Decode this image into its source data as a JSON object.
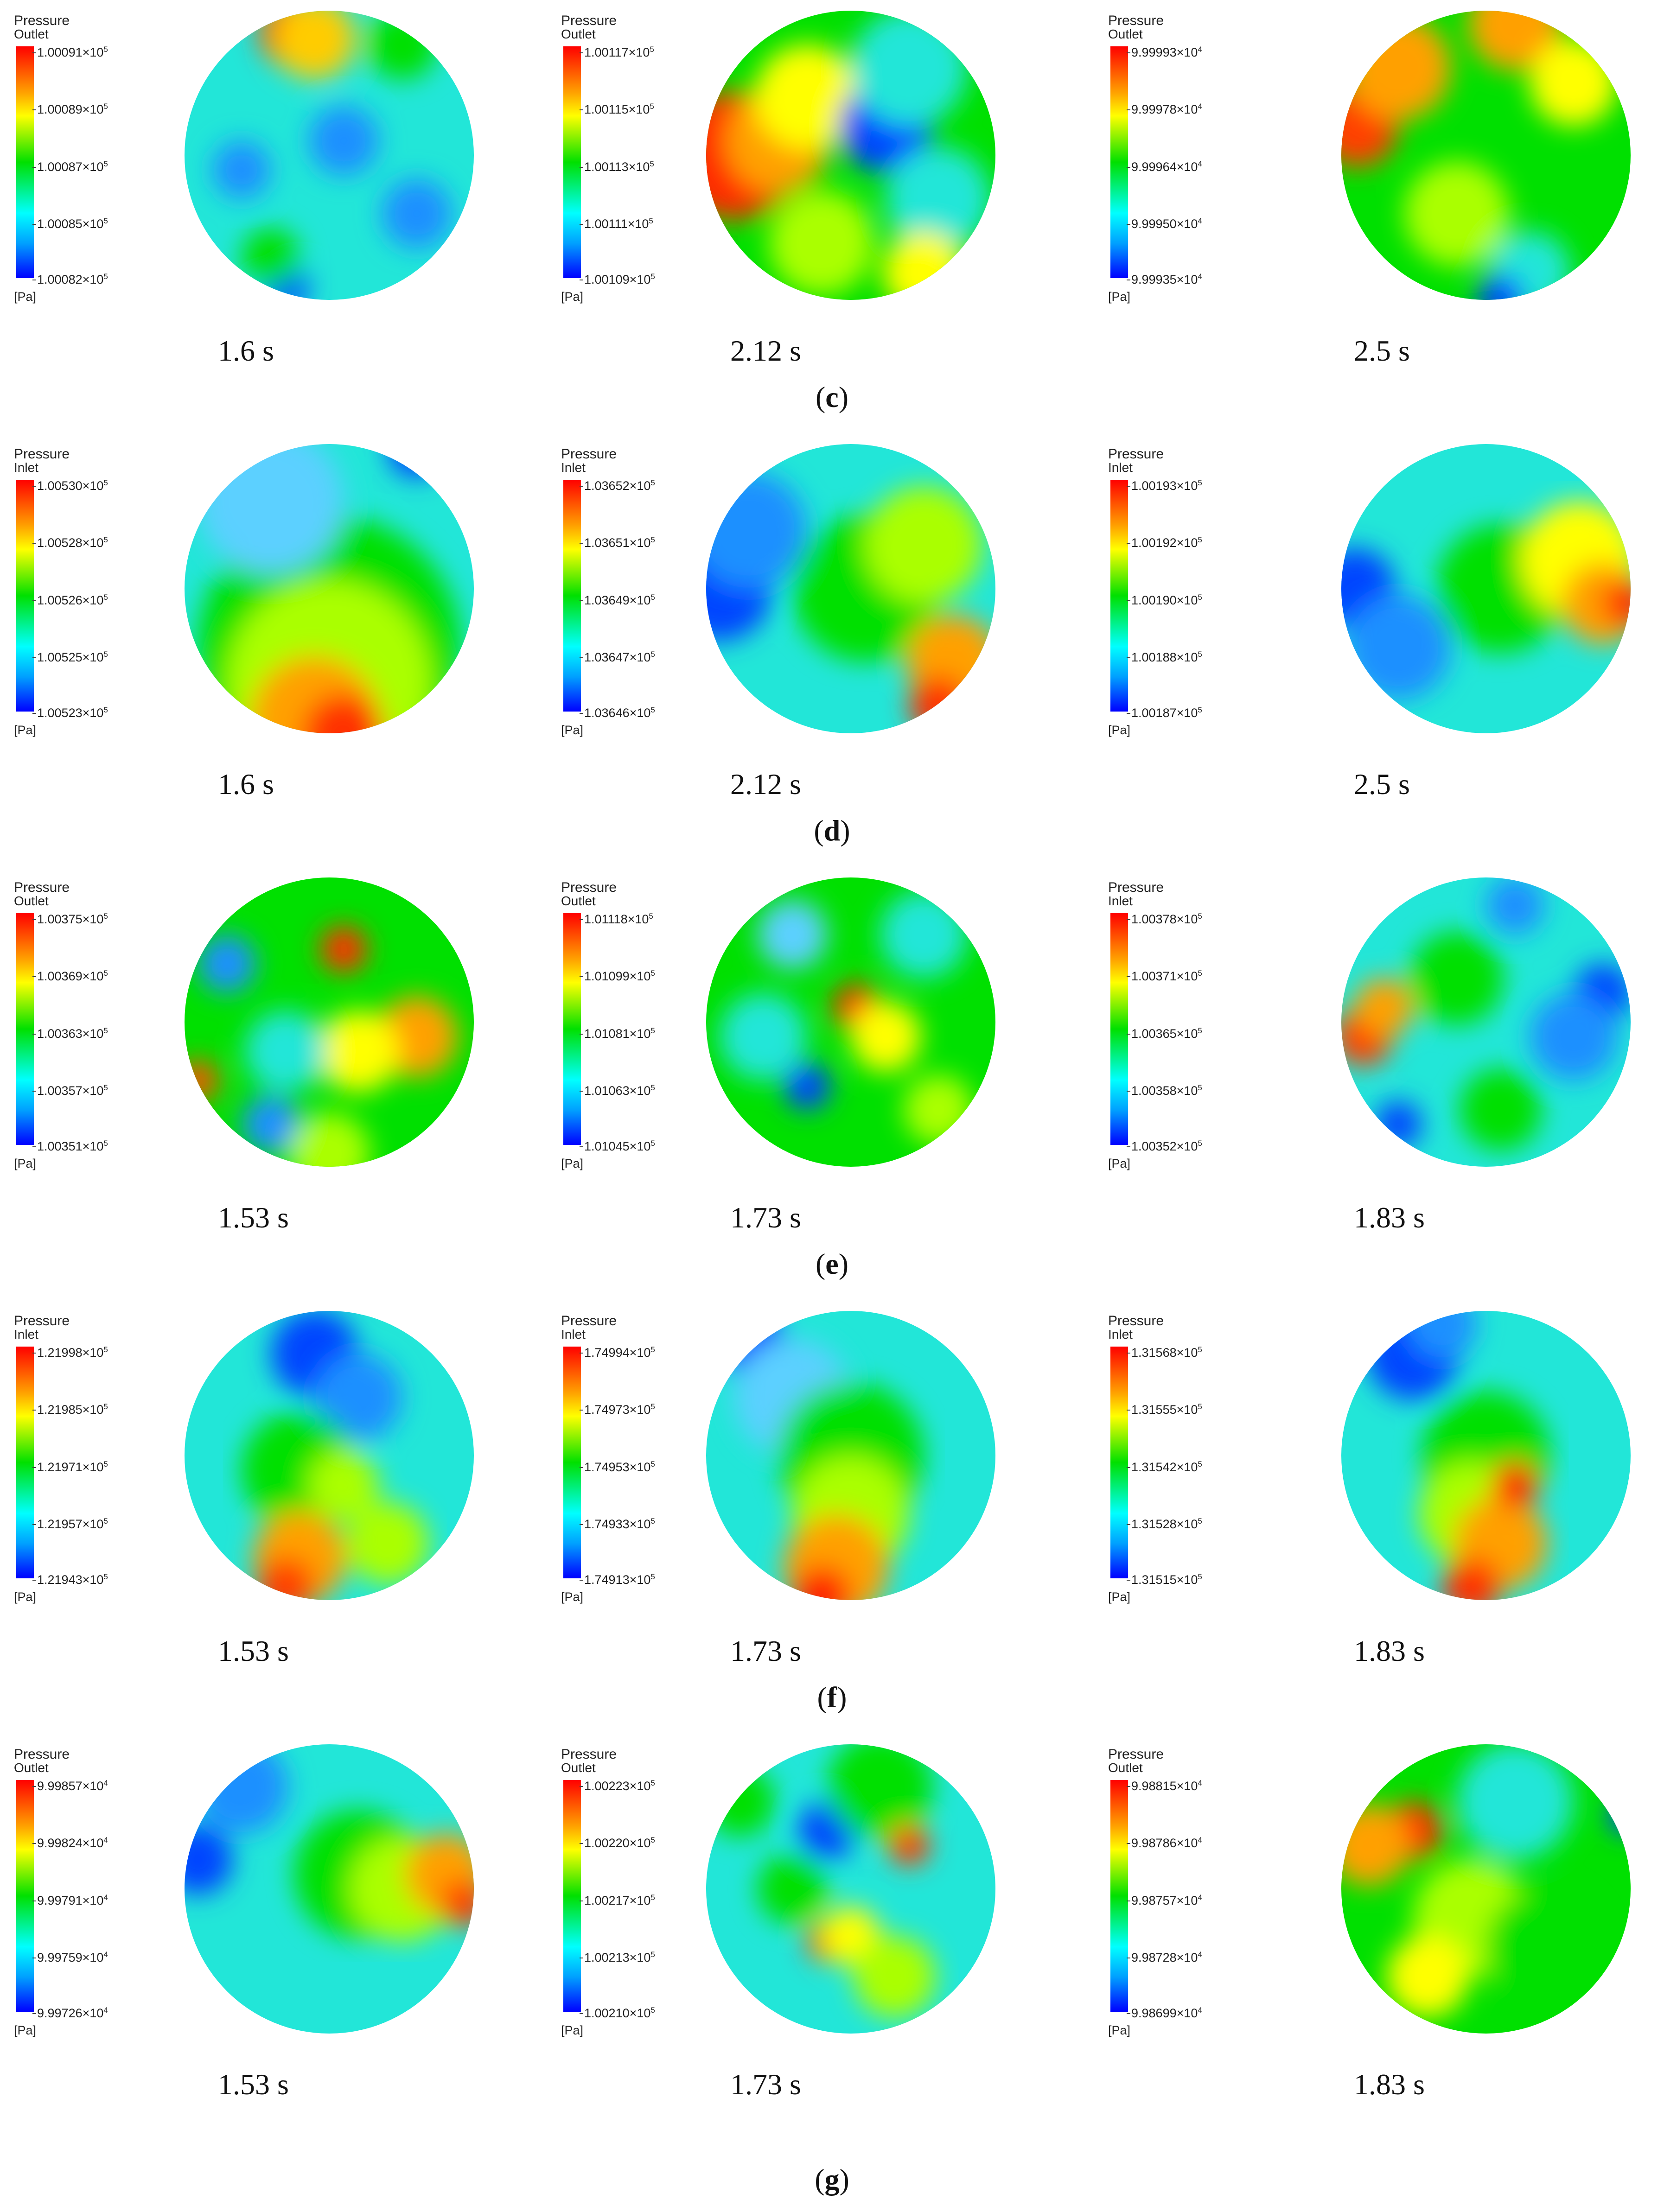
{
  "panels": [
    {
      "label": "c",
      "cells": [
        {
          "legend_title": "Pressure",
          "legend_sub": "Outlet",
          "unit": "[Pa]",
          "ticks": [
            "1.00091×10",
            "1.00089×10",
            "1.00087×10",
            "1.00085×10",
            "1.00082×10"
          ],
          "exp": "5",
          "time": "1.6 s",
          "palette": "c1"
        },
        {
          "legend_title": "Pressure",
          "legend_sub": "Outlet",
          "unit": "[Pa]",
          "ticks": [
            "1.00117×10",
            "1.00115×10",
            "1.00113×10",
            "1.00111×10",
            "1.00109×10"
          ],
          "exp": "5",
          "time": "2.12 s",
          "palette": "c2"
        },
        {
          "legend_title": "Pressure",
          "legend_sub": "Outlet",
          "unit": "[Pa]",
          "ticks": [
            "9.99993×10",
            "9.99978×10",
            "9.99964×10",
            "9.99950×10",
            "9.99935×10"
          ],
          "exp": "4",
          "time": "2.5 s",
          "palette": "c3"
        }
      ]
    },
    {
      "label": "d",
      "cells": [
        {
          "legend_title": "Pressure",
          "legend_sub": "Inlet",
          "unit": "[Pa]",
          "ticks": [
            "1.00530×10",
            "1.00528×10",
            "1.00526×10",
            "1.00525×10",
            "1.00523×10"
          ],
          "exp": "5",
          "time": "1.6 s",
          "palette": "d1"
        },
        {
          "legend_title": "Pressure",
          "legend_sub": "Inlet",
          "unit": "[Pa]",
          "ticks": [
            "1.03652×10",
            "1.03651×10",
            "1.03649×10",
            "1.03647×10",
            "1.03646×10"
          ],
          "exp": "5",
          "time": "2.12 s",
          "palette": "d2"
        },
        {
          "legend_title": "Pressure",
          "legend_sub": "Inlet",
          "unit": "[Pa]",
          "ticks": [
            "1.00193×10",
            "1.00192×10",
            "1.00190×10",
            "1.00188×10",
            "1.00187×10"
          ],
          "exp": "5",
          "time": "2.5 s",
          "palette": "d3"
        }
      ]
    },
    {
      "label": "e",
      "cells": [
        {
          "legend_title": "Pressure",
          "legend_sub": "Outlet",
          "unit": "[Pa]",
          "ticks": [
            "1.00375×10",
            "1.00369×10",
            "1.00363×10",
            "1.00357×10",
            "1.00351×10"
          ],
          "exp": "5",
          "time": "1.53 s",
          "palette": "e1"
        },
        {
          "legend_title": "Pressure",
          "legend_sub": "Outlet",
          "unit": "[Pa]",
          "ticks": [
            "1.01118×10",
            "1.01099×10",
            "1.01081×10",
            "1.01063×10",
            "1.01045×10"
          ],
          "exp": "5",
          "time": "1.73 s",
          "palette": "e2"
        },
        {
          "legend_title": "Pressure",
          "legend_sub": "Inlet",
          "unit": "[Pa]",
          "ticks": [
            "1.00378×10",
            "1.00371×10",
            "1.00365×10",
            "1.00358×10",
            "1.00352×10"
          ],
          "exp": "5",
          "time": "1.83 s",
          "palette": "e3"
        }
      ]
    },
    {
      "label": "f",
      "cells": [
        {
          "legend_title": "Pressure",
          "legend_sub": "Inlet",
          "unit": "[Pa]",
          "ticks": [
            "1.21998×10",
            "1.21985×10",
            "1.21971×10",
            "1.21957×10",
            "1.21943×10"
          ],
          "exp": "5",
          "time": "1.53 s",
          "palette": "f1"
        },
        {
          "legend_title": "Pressure",
          "legend_sub": "Inlet",
          "unit": "[Pa]",
          "ticks": [
            "1.74994×10",
            "1.74973×10",
            "1.74953×10",
            "1.74933×10",
            "1.74913×10"
          ],
          "exp": "5",
          "time": "1.73 s",
          "palette": "f2"
        },
        {
          "legend_title": "Pressure",
          "legend_sub": "Inlet",
          "unit": "[Pa]",
          "ticks": [
            "1.31568×10",
            "1.31555×10",
            "1.31542×10",
            "1.31528×10",
            "1.31515×10"
          ],
          "exp": "5",
          "time": "1.83 s",
          "palette": "f3"
        }
      ]
    },
    {
      "label": "g",
      "cells": [
        {
          "legend_title": "Pressure",
          "legend_sub": "Outlet",
          "unit": "[Pa]",
          "ticks": [
            "9.99857×10",
            "9.99824×10",
            "9.99791×10",
            "9.99759×10",
            "9.99726×10"
          ],
          "exp": "4",
          "time": "1.53 s",
          "palette": "g1"
        },
        {
          "legend_title": "Pressure",
          "legend_sub": "Outlet",
          "unit": "[Pa]",
          "ticks": [
            "1.00223×10",
            "1.00220×10",
            "1.00217×10",
            "1.00213×10",
            "1.00210×10"
          ],
          "exp": "5",
          "time": "1.73 s",
          "palette": "g2"
        },
        {
          "legend_title": "Pressure",
          "legend_sub": "Outlet",
          "unit": "[Pa]",
          "ticks": [
            "9.98815×10",
            "9.98786×10",
            "9.98757×10",
            "9.98728×10",
            "9.98699×10"
          ],
          "exp": "4",
          "time": "1.83 s",
          "palette": "g3"
        }
      ]
    }
  ]
}
